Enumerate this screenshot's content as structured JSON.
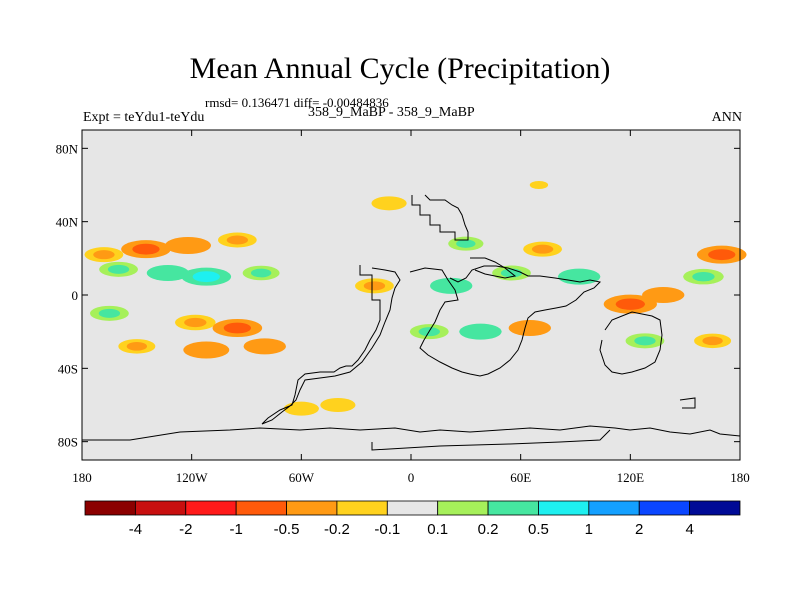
{
  "figure": {
    "title": "Mean Annual Cycle (Precipitation)",
    "stats": "rmsd= 0.136471 diff= -0.00484836",
    "experiment": "Expt = teYdu1-teYdu",
    "case": "358_9_MaBP - 358_9_MaBP",
    "season": "ANN"
  },
  "axes": {
    "y_ticks": [
      {
        "lat": 80,
        "label": "80N"
      },
      {
        "lat": 40,
        "label": "40N"
      },
      {
        "lat": 0,
        "label": "0"
      },
      {
        "lat": -40,
        "label": "40S"
      },
      {
        "lat": -80,
        "label": "80S"
      }
    ],
    "x_ticks": [
      {
        "lon": -180,
        "label": "180"
      },
      {
        "lon": -120,
        "label": "120W"
      },
      {
        "lon": -60,
        "label": "60W"
      },
      {
        "lon": 0,
        "label": "0"
      },
      {
        "lon": 60,
        "label": "60E"
      },
      {
        "lon": 120,
        "label": "120E"
      },
      {
        "lon": 180,
        "label": "180"
      }
    ]
  },
  "colorbar": {
    "colors": [
      "#8b0000",
      "#c80f0f",
      "#ff1a1a",
      "#ff5a0a",
      "#ff9a14",
      "#ffd21e",
      "#e6e6e6",
      "#a6f05a",
      "#46e6a0",
      "#1ef0f0",
      "#14a0ff",
      "#0a46ff",
      "#000a96"
    ],
    "labels": [
      "-4",
      "-2",
      "-1",
      "-0.5",
      "-0.2",
      "-0.1",
      "0.1",
      "0.2",
      "0.5",
      "1",
      "2",
      "4"
    ]
  },
  "chart_data": {
    "type": "heatmap",
    "title": "Mean Annual Cycle (Precipitation)",
    "variable": "Precipitation difference",
    "xlim": [
      -180,
      180
    ],
    "ylim": [
      -90,
      90
    ],
    "levels": [
      -4,
      -2,
      -1,
      -0.5,
      -0.2,
      -0.1,
      0.1,
      0.2,
      0.5,
      1,
      2,
      4
    ],
    "anomalies": [
      {
        "lon": -168,
        "lat": 22,
        "value": -0.3
      },
      {
        "lon": -145,
        "lat": 25,
        "value": -0.6
      },
      {
        "lon": -122,
        "lat": 27,
        "value": -0.5
      },
      {
        "lon": -95,
        "lat": 30,
        "value": -0.3
      },
      {
        "lon": -160,
        "lat": 14,
        "value": 0.3
      },
      {
        "lon": -133,
        "lat": 12,
        "value": 0.4
      },
      {
        "lon": -112,
        "lat": 10,
        "value": 0.6
      },
      {
        "lon": -82,
        "lat": 12,
        "value": 0.25
      },
      {
        "lon": -165,
        "lat": -10,
        "value": 0.3
      },
      {
        "lon": -118,
        "lat": -15,
        "value": -0.35
      },
      {
        "lon": -95,
        "lat": -18,
        "value": -0.6
      },
      {
        "lon": -112,
        "lat": -30,
        "value": -0.5
      },
      {
        "lon": -80,
        "lat": -28,
        "value": -0.4
      },
      {
        "lon": -150,
        "lat": -28,
        "value": -0.25
      },
      {
        "lon": -60,
        "lat": -62,
        "value": -0.2
      },
      {
        "lon": -40,
        "lat": -60,
        "value": -0.2
      },
      {
        "lon": -20,
        "lat": 5,
        "value": -0.3
      },
      {
        "lon": -12,
        "lat": 50,
        "value": -0.2
      },
      {
        "lon": 10,
        "lat": -20,
        "value": 0.3
      },
      {
        "lon": 22,
        "lat": 5,
        "value": 0.4
      },
      {
        "lon": 30,
        "lat": 28,
        "value": 0.2
      },
      {
        "lon": 38,
        "lat": -20,
        "value": 0.4
      },
      {
        "lon": 55,
        "lat": 12,
        "value": 0.3
      },
      {
        "lon": 65,
        "lat": -18,
        "value": -0.4
      },
      {
        "lon": 72,
        "lat": 25,
        "value": -0.3
      },
      {
        "lon": 70,
        "lat": 60,
        "value": -0.15
      },
      {
        "lon": 92,
        "lat": 10,
        "value": 0.4
      },
      {
        "lon": 120,
        "lat": -5,
        "value": -0.7
      },
      {
        "lon": 138,
        "lat": 0,
        "value": -0.4
      },
      {
        "lon": 128,
        "lat": -25,
        "value": 0.3
      },
      {
        "lon": 170,
        "lat": 22,
        "value": -0.6
      },
      {
        "lon": 160,
        "lat": 10,
        "value": 0.35
      },
      {
        "lon": 165,
        "lat": -25,
        "value": -0.25
      }
    ]
  }
}
